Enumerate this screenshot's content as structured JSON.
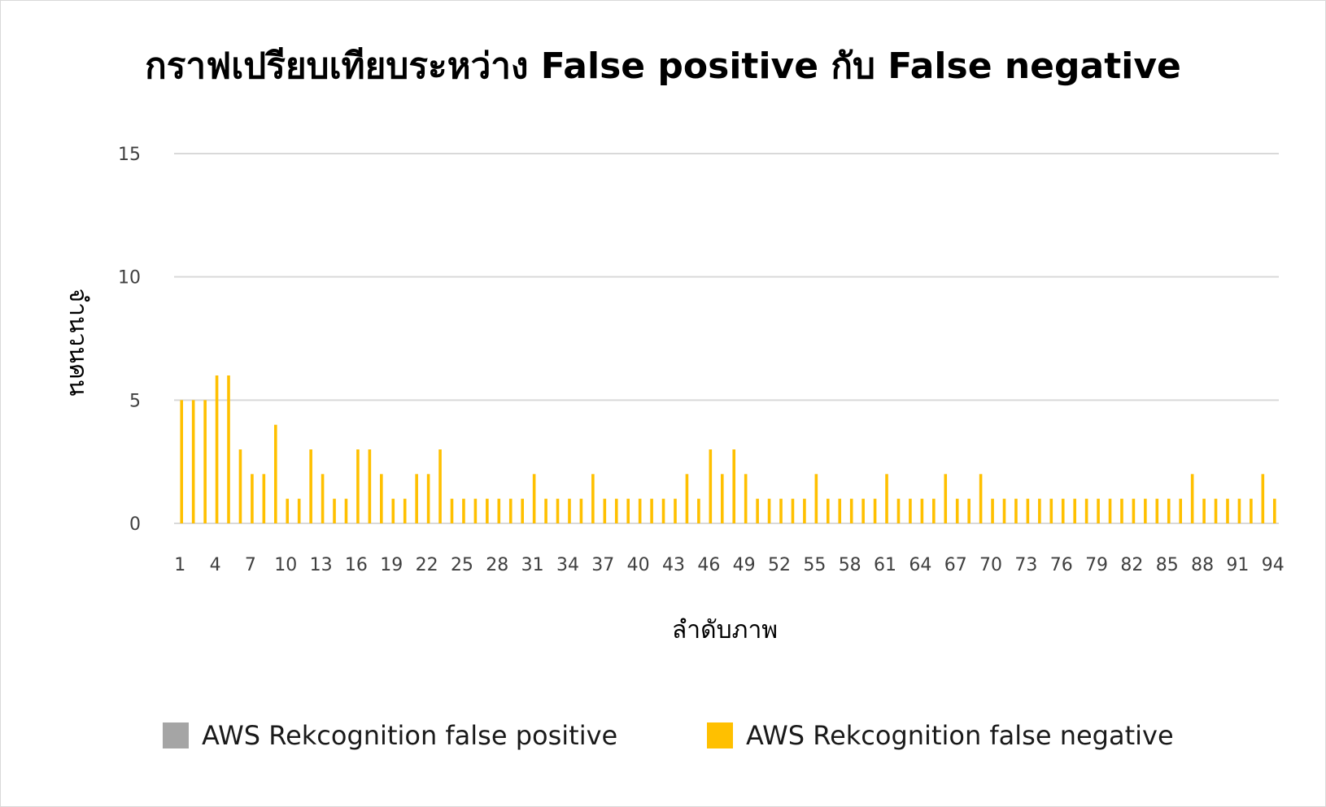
{
  "chart_data": {
    "type": "bar",
    "title": "กราฟเปรียบเทียบระหว่าง False positive กับ False negative",
    "xlabel": "ลำดับภาพ",
    "ylabel": "จำนวนคน",
    "ylim": [
      0,
      15
    ],
    "yticks": [
      0,
      5,
      10,
      15
    ],
    "grid": true,
    "legend_position": "bottom",
    "x": [
      1,
      2,
      3,
      4,
      5,
      6,
      7,
      8,
      9,
      10,
      11,
      12,
      13,
      14,
      15,
      16,
      17,
      18,
      19,
      20,
      21,
      22,
      23,
      24,
      25,
      26,
      27,
      28,
      29,
      30,
      31,
      32,
      33,
      34,
      35,
      36,
      37,
      38,
      39,
      40,
      41,
      42,
      43,
      44,
      45,
      46,
      47,
      48,
      49,
      50,
      51,
      52,
      53,
      54,
      55,
      56,
      57,
      58,
      59,
      60,
      61,
      62,
      63,
      64,
      65,
      66,
      67,
      68,
      69,
      70,
      71,
      72,
      73,
      74,
      75,
      76,
      77,
      78,
      79,
      80,
      81,
      82,
      83,
      84,
      85,
      86,
      87,
      88,
      89,
      90,
      91,
      92,
      93,
      94
    ],
    "xticks": [
      "1",
      "4",
      "7",
      "10",
      "13",
      "16",
      "19",
      "22",
      "25",
      "28",
      "31",
      "34",
      "37",
      "40",
      "43",
      "46",
      "49",
      "52",
      "55",
      "58",
      "61",
      "64",
      "67",
      "70",
      "73",
      "76",
      "79",
      "82",
      "85",
      "88",
      "91",
      "94"
    ],
    "series": [
      {
        "name": "AWS Rekcognition false positive",
        "color": "#a5a5a5",
        "values": [
          0,
          0,
          0,
          0,
          0,
          0,
          0,
          0,
          0,
          0,
          0,
          0,
          0,
          0,
          0,
          0,
          0,
          0,
          0,
          0,
          0,
          0,
          0,
          0,
          0,
          0,
          0,
          0,
          0,
          0,
          0,
          0,
          0,
          0,
          0,
          0,
          0,
          0,
          0,
          0,
          0,
          0,
          0,
          0,
          0,
          0,
          0,
          0,
          0,
          0,
          0,
          0,
          0,
          0,
          0,
          0,
          0,
          0,
          0,
          0,
          0,
          0,
          0,
          0,
          0,
          0,
          0,
          0,
          0,
          0,
          0,
          0,
          0,
          0,
          0,
          0,
          0,
          0,
          0,
          0,
          0,
          0,
          0,
          0,
          0,
          0,
          0,
          0,
          0,
          0,
          0,
          0,
          0,
          0
        ]
      },
      {
        "name": "AWS Rekcognition false negative",
        "color": "#ffc000",
        "values": [
          5,
          5,
          5,
          6,
          6,
          3,
          2,
          2,
          4,
          1,
          1,
          3,
          2,
          1,
          1,
          3,
          3,
          2,
          1,
          1,
          2,
          2,
          3,
          1,
          1,
          1,
          1,
          1,
          1,
          1,
          2,
          1,
          1,
          1,
          1,
          2,
          1,
          1,
          1,
          1,
          1,
          1,
          1,
          2,
          1,
          3,
          2,
          3,
          2,
          1,
          1,
          1,
          1,
          1,
          2,
          1,
          1,
          1,
          1,
          1,
          2,
          1,
          1,
          1,
          1,
          2,
          1,
          1,
          2,
          1,
          1,
          1,
          1,
          1,
          1,
          1,
          1,
          1,
          1,
          1,
          1,
          1,
          1,
          1,
          1,
          1,
          2,
          1,
          1,
          1,
          1,
          1,
          2,
          1
        ]
      }
    ]
  }
}
